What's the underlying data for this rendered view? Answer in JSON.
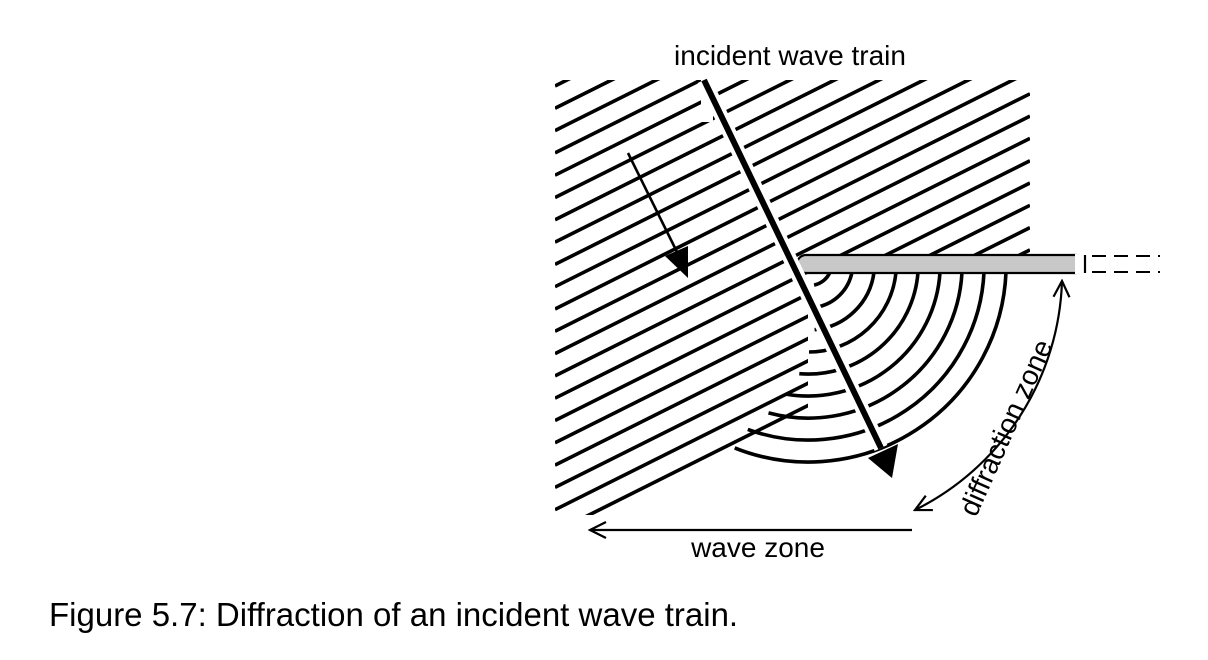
{
  "diagram": {
    "labels": {
      "incident": "incident wave train",
      "wave_zone": "wave zone",
      "diffraction_zone": "diffraction zone"
    },
    "colors": {
      "ink": "#000000",
      "breakwater_fill": "#c8c8c8"
    },
    "crest_count": 21,
    "arc_count": 9
  },
  "caption": "Figure 5.7: Diffraction of an incident wave train."
}
